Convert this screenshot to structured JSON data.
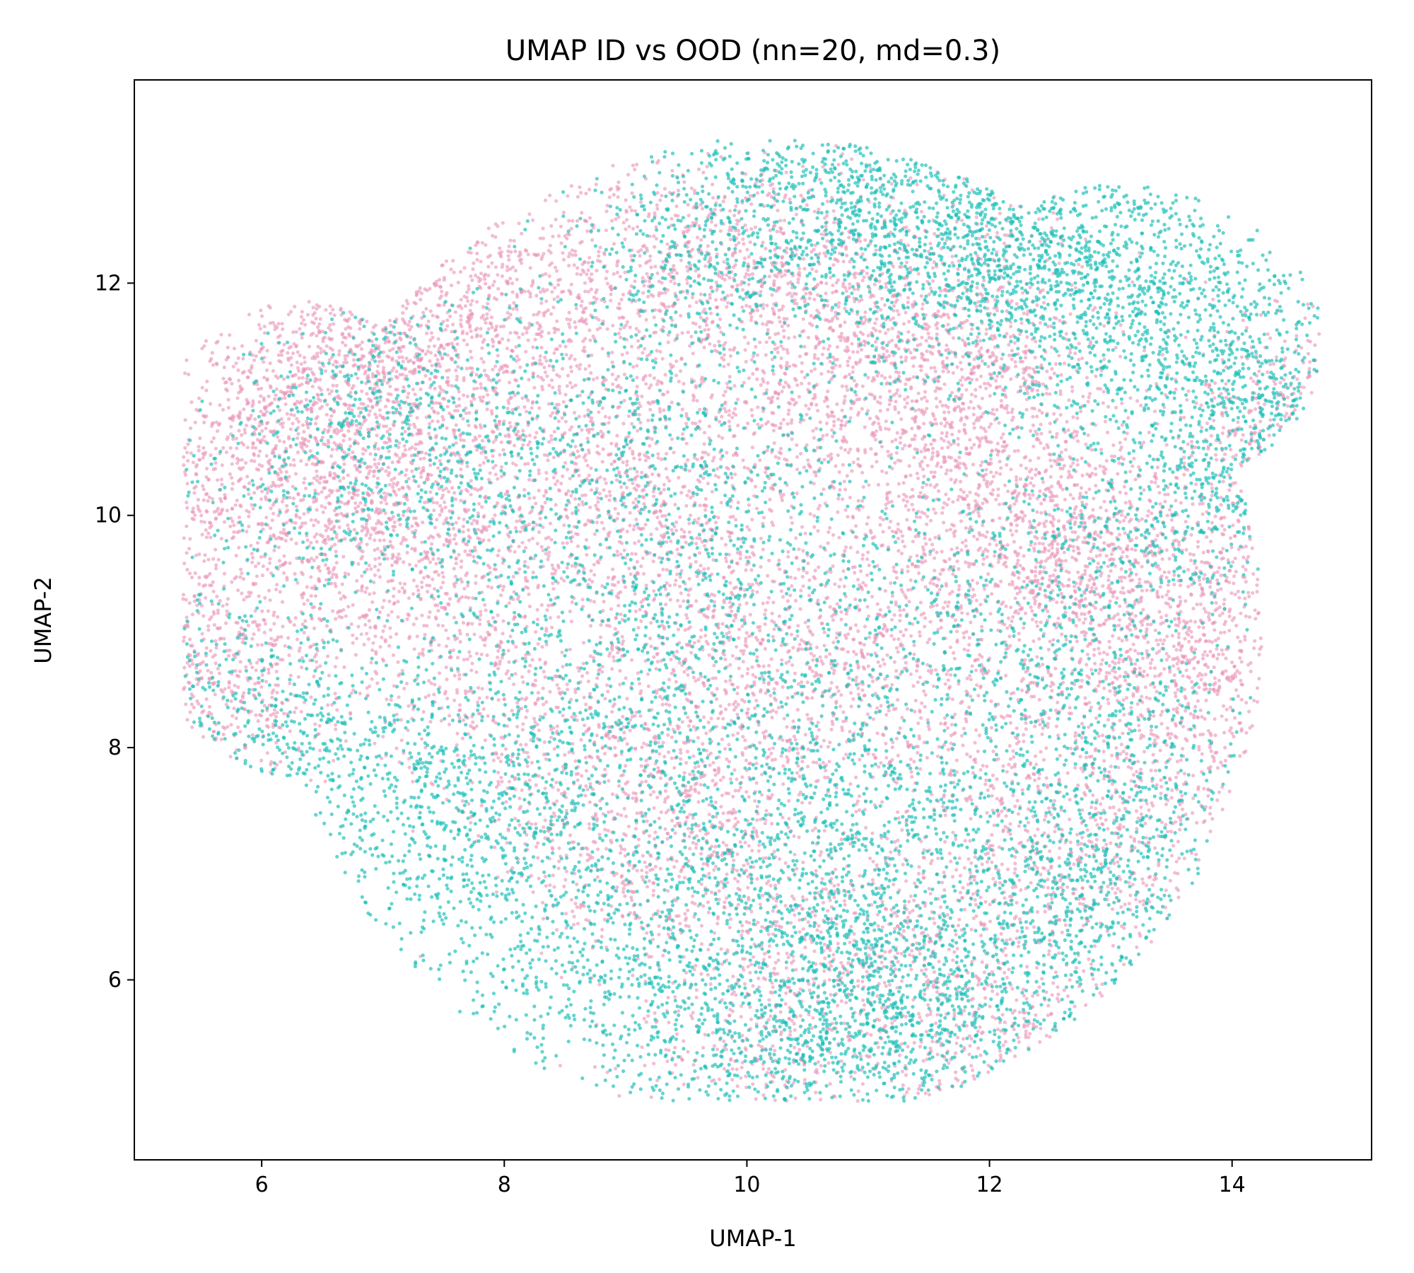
{
  "chart_data": {
    "type": "scatter",
    "title": "UMAP ID vs OOD (nn=20, md=0.3)",
    "xlabel": "UMAP-1",
    "ylabel": "UMAP-2",
    "xlim": [
      4.95,
      15.15
    ],
    "ylim": [
      4.45,
      13.75
    ],
    "xticks": [
      6,
      8,
      10,
      12,
      14
    ],
    "yticks": [
      6,
      8,
      10,
      12
    ],
    "xtick_labels": [
      "6",
      "8",
      "10",
      "12",
      "14"
    ],
    "ytick_labels": [
      "6",
      "8",
      "10",
      "12"
    ],
    "grid": false,
    "legend": "none",
    "series_colors": [
      "#e896b8",
      "#1cbfb8"
    ],
    "approx_point_count": 30000,
    "series": [
      {
        "color": "#e896b8",
        "description_points": [
          [
            5.6,
            8.8
          ],
          [
            5.7,
            8.6
          ],
          [
            5.5,
            10.2
          ],
          [
            5.8,
            10.5
          ],
          [
            6.3,
            11.0
          ],
          [
            6.6,
            11.3
          ],
          [
            7.0,
            11.4
          ],
          [
            7.6,
            11.6
          ],
          [
            8.3,
            11.9
          ],
          [
            9.0,
            12.2
          ],
          [
            9.8,
            12.3
          ],
          [
            10.5,
            12.0
          ],
          [
            11.0,
            11.5
          ],
          [
            11.5,
            11.0
          ],
          [
            12.0,
            10.8
          ],
          [
            12.3,
            10.2
          ],
          [
            12.5,
            9.8
          ],
          [
            13.0,
            9.5
          ],
          [
            13.5,
            9.3
          ],
          [
            13.8,
            8.5
          ],
          [
            13.6,
            8.8
          ],
          [
            13.2,
            7.5
          ],
          [
            12.5,
            7.0
          ],
          [
            11.5,
            6.5
          ],
          [
            10.5,
            6.0
          ],
          [
            9.5,
            6.8
          ],
          [
            8.8,
            7.5
          ],
          [
            8.2,
            8.5
          ],
          [
            7.5,
            9.0
          ],
          [
            7.0,
            9.8
          ],
          [
            9.5,
            9.5
          ],
          [
            10.0,
            9.0
          ],
          [
            10.8,
            8.5
          ],
          [
            11.5,
            9.5
          ],
          [
            12.0,
            8.2
          ],
          [
            9.2,
            10.5
          ],
          [
            10.5,
            10.8
          ],
          [
            11.8,
            11.8
          ],
          [
            8.5,
            10.0
          ],
          [
            9.8,
            7.8
          ],
          [
            10.2,
            5.3
          ],
          [
            12.0,
            5.4
          ],
          [
            7.8,
            10.8
          ],
          [
            6.8,
            10.0
          ],
          [
            14.6,
            10.5
          ],
          [
            14.5,
            10.8
          ]
        ]
      },
      {
        "color": "#1cbfb8",
        "description_points": [
          [
            10.5,
            12.8
          ],
          [
            11.2,
            12.9
          ],
          [
            11.8,
            12.7
          ],
          [
            12.5,
            12.5
          ],
          [
            13.0,
            12.3
          ],
          [
            13.5,
            12.0
          ],
          [
            14.0,
            11.5
          ],
          [
            14.3,
            11.0
          ],
          [
            14.0,
            10.8
          ],
          [
            13.8,
            10.0
          ],
          [
            10.0,
            12.6
          ],
          [
            9.5,
            12.3
          ],
          [
            11.0,
            12.4
          ],
          [
            12.2,
            12.2
          ],
          [
            12.8,
            11.6
          ],
          [
            11.5,
            12.0
          ],
          [
            8.0,
            7.5
          ],
          [
            7.5,
            7.0
          ],
          [
            7.2,
            7.8
          ],
          [
            8.5,
            6.2
          ],
          [
            9.0,
            5.8
          ],
          [
            9.8,
            5.5
          ],
          [
            10.5,
            5.3
          ],
          [
            11.0,
            5.6
          ],
          [
            11.5,
            5.8
          ],
          [
            12.2,
            6.0
          ],
          [
            12.8,
            6.5
          ],
          [
            13.2,
            6.8
          ],
          [
            10.5,
            6.5
          ],
          [
            11.0,
            6.2
          ],
          [
            9.5,
            7.0
          ],
          [
            8.8,
            8.0
          ],
          [
            9.5,
            9.0
          ],
          [
            10.3,
            8.0
          ],
          [
            11.0,
            7.5
          ],
          [
            12.0,
            7.2
          ],
          [
            12.5,
            8.5
          ],
          [
            13.2,
            8.0
          ],
          [
            8.2,
            9.5
          ],
          [
            7.8,
            10.5
          ],
          [
            6.2,
            8.0
          ],
          [
            5.8,
            8.5
          ],
          [
            6.5,
            10.3
          ],
          [
            7.0,
            11.0
          ],
          [
            9.0,
            10.8
          ],
          [
            10.0,
            10.2
          ],
          [
            11.2,
            9.2
          ],
          [
            12.8,
            9.8
          ]
        ]
      }
    ]
  }
}
